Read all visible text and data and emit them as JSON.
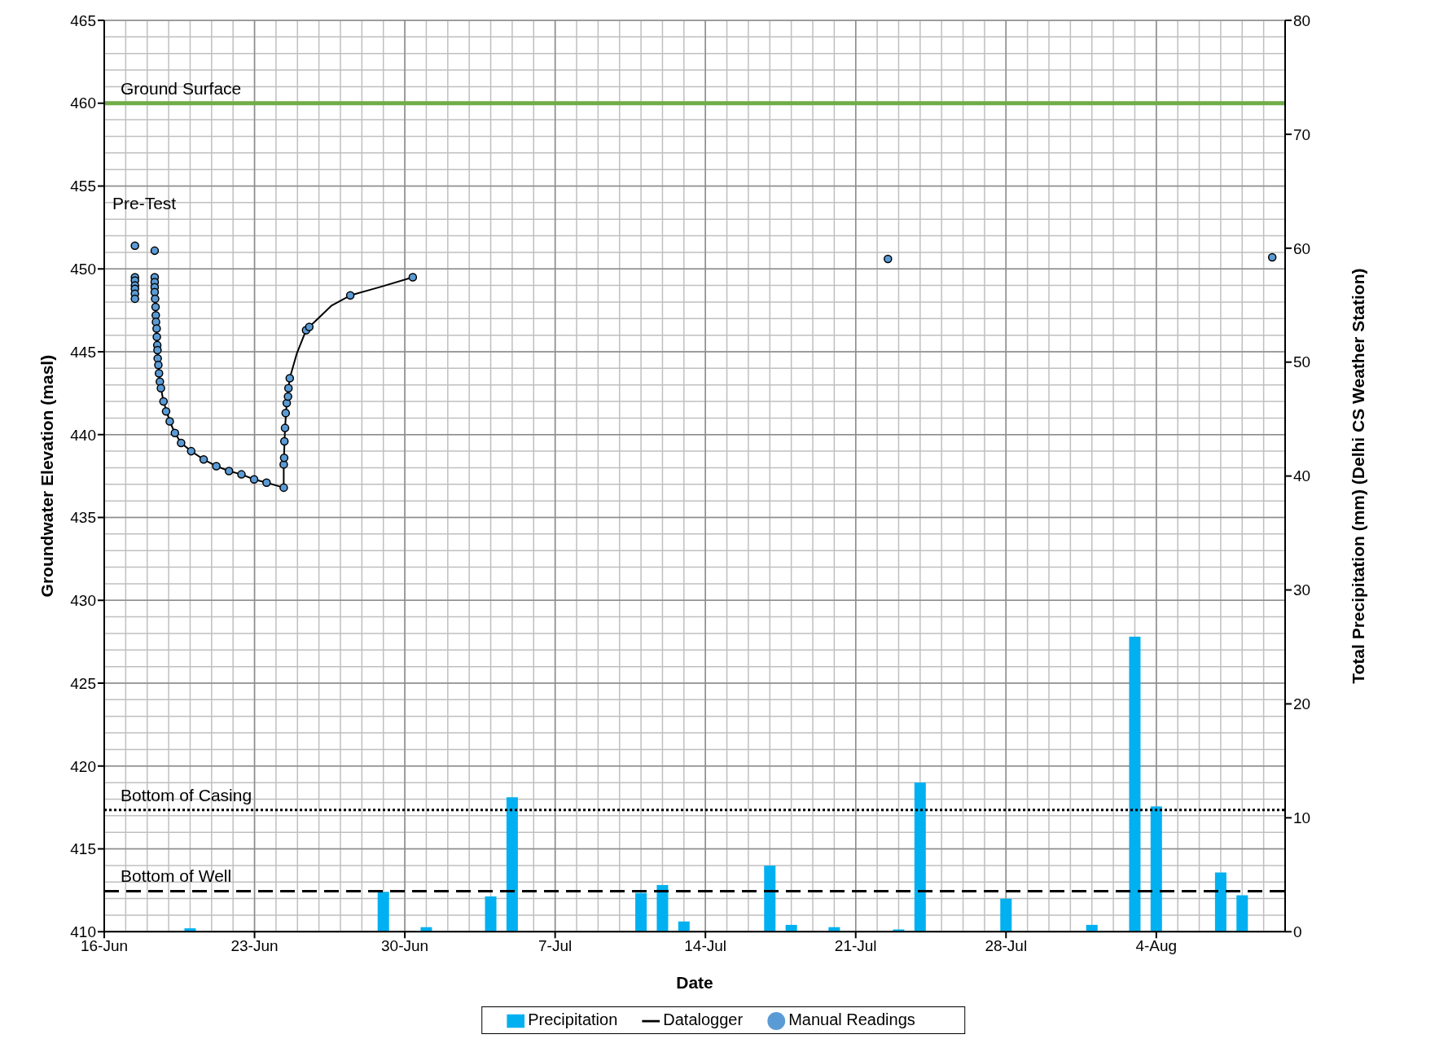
{
  "chart_data": {
    "type": "line",
    "xlabel": "Date",
    "ylabel": "Groundwater Elevation (masl)",
    "y2label": "Total Precipitation (mm) (Delhi CS Weather Station)",
    "xlim": [
      "--06-16",
      "--08-10"
    ],
    "xticks": [
      {
        "value": "--06-16",
        "label": "16-Jun"
      },
      {
        "value": "--06-23",
        "label": "23-Jun"
      },
      {
        "value": "--06-30",
        "label": "30-Jun"
      },
      {
        "value": "--07-07",
        "label": "7-Jul"
      },
      {
        "value": "--07-14",
        "label": "14-Jul"
      },
      {
        "value": "--07-21",
        "label": "21-Jul"
      },
      {
        "value": "--07-28",
        "label": "28-Jul"
      },
      {
        "value": "--08-04",
        "label": "4-Aug"
      }
    ],
    "ylim": [
      410,
      465
    ],
    "yticks": [
      410,
      415,
      420,
      425,
      430,
      435,
      440,
      445,
      450,
      455,
      460,
      465
    ],
    "y2lim": [
      0,
      80
    ],
    "y2ticks": [
      0,
      10,
      20,
      30,
      40,
      50,
      60,
      70,
      80
    ],
    "grid": true,
    "legend": "bottom",
    "annotations": [
      "Pre-Test"
    ],
    "ref_lines": [
      {
        "axis": "y",
        "value": 460,
        "label": "Ground Surface",
        "color": "#70ad47",
        "line_style": "solid"
      },
      {
        "axis": "y",
        "value": 417.35,
        "label": "Bottom of Casing",
        "color": "#000000",
        "line_style": "dotted"
      },
      {
        "axis": "y",
        "value": 412.45,
        "label": "Bottom of Well",
        "color": "#000000",
        "line_style": "dashed"
      }
    ],
    "series": [
      {
        "name": "Precipitation",
        "type": "bar",
        "axis": "y2",
        "color": "#00b0f0",
        "x": [
          "--06-20",
          "--06-29",
          "--07-01",
          "--07-04",
          "--07-05",
          "--07-11",
          "--07-12",
          "--07-13",
          "--07-17",
          "--07-18",
          "--07-20",
          "--07-23",
          "--07-24",
          "--07-28",
          "--08-01",
          "--08-03",
          "--08-04",
          "--08-07",
          "--08-08"
        ],
        "values": [
          0.3,
          3.5,
          0.4,
          3.1,
          11.8,
          3.4,
          4.1,
          0.9,
          5.8,
          0.6,
          0.4,
          0.2,
          13.1,
          2.9,
          0.6,
          25.9,
          11.0,
          5.2,
          3.2
        ]
      },
      {
        "name": "Datalogger",
        "color": "#000000",
        "marker": "none",
        "line_style": "solid",
        "x": [
          "--06-18T08:24",
          "--06-18T08:53",
          "--06-18T09:50",
          "--06-18T11:17",
          "--06-18T12:29",
          "--06-18T14:10",
          "--06-18T15:22",
          "--06-18T18:14",
          "--06-19T01:12",
          "--06-19T06:58",
          "--06-19T13:55",
          "--06-20T01:12",
          "--06-20T15:07",
          "--06-21T05:17",
          "--06-21T19:26",
          "--06-22T09:22",
          "--06-22T23:31",
          "--06-23T13:26",
          "--06-24T08:38",
          "--06-24T08:38",
          "--06-24T10:05",
          "--06-24T12:00",
          "--06-24T15:22",
          "--06-24T23:17",
          "--06-25T09:36",
          "--06-25T13:12",
          "--06-26T14:24",
          "--06-27T11:02",
          "--06-28T19:55",
          "--06-30T08:53"
        ],
        "values": [
          449.5,
          448.2,
          446.8,
          445.4,
          444.2,
          443.2,
          442.8,
          442.0,
          440.8,
          440.1,
          439.5,
          439.0,
          438.5,
          438.1,
          437.8,
          437.6,
          437.3,
          437.1,
          436.8,
          438.2,
          440.4,
          441.9,
          443.4,
          444.9,
          446.3,
          446.5,
          447.8,
          448.4,
          448.9,
          449.5
        ]
      },
      {
        "name": "Manual Readings",
        "type": "scatter",
        "color": "#5b9bd5",
        "marker": "circle",
        "x": [
          "--06-17T10:19",
          "--06-17T10:19",
          "--06-17T10:19",
          "--06-17T10:19",
          "--06-17T10:19",
          "--06-17T10:19",
          "--06-17T10:19",
          "--06-18T08:24",
          "--06-18T08:24",
          "--06-18T08:24",
          "--06-18T08:24",
          "--06-18T08:24",
          "--06-18T08:53",
          "--06-18T09:22",
          "--06-18T09:36",
          "--06-18T09:50",
          "--06-18T10:34",
          "--06-18T10:48",
          "--06-18T11:17",
          "--06-18T11:31",
          "--06-18T11:46",
          "--06-18T12:29",
          "--06-18T13:12",
          "--06-18T14:10",
          "--06-18T15:22",
          "--06-18T18:14",
          "--06-18T21:07",
          "--06-19T01:12",
          "--06-19T06:58",
          "--06-19T13:55",
          "--06-20T01:12",
          "--06-20T15:07",
          "--06-21T05:17",
          "--06-21T19:26",
          "--06-22T09:22",
          "--06-22T23:31",
          "--06-23T13:26",
          "--06-24T08:38",
          "--06-24T08:38",
          "--06-24T09:07",
          "--06-24T09:22",
          "--06-24T10:05",
          "--06-24T10:48",
          "--06-24T12:00",
          "--06-24T13:26",
          "--06-24T13:55",
          "--06-24T15:22",
          "--06-25T09:36",
          "--06-25T13:12",
          "--06-27T11:02",
          "--06-30T08:53",
          "--07-22T12:00",
          "--08-09T09:36"
        ],
        "values": [
          451.4,
          449.5,
          449.3,
          449.0,
          448.8,
          448.5,
          448.2,
          451.1,
          449.5,
          449.2,
          448.9,
          448.6,
          448.2,
          447.7,
          447.2,
          446.8,
          446.4,
          445.9,
          445.4,
          445.1,
          444.6,
          444.2,
          443.7,
          443.2,
          442.8,
          442.0,
          441.4,
          440.8,
          440.1,
          439.5,
          439.0,
          438.5,
          438.1,
          437.8,
          437.6,
          437.3,
          437.1,
          436.8,
          438.2,
          438.6,
          439.6,
          440.4,
          441.3,
          441.9,
          442.3,
          442.8,
          443.4,
          446.3,
          446.5,
          448.4,
          449.5,
          450.6,
          450.7
        ]
      }
    ]
  }
}
